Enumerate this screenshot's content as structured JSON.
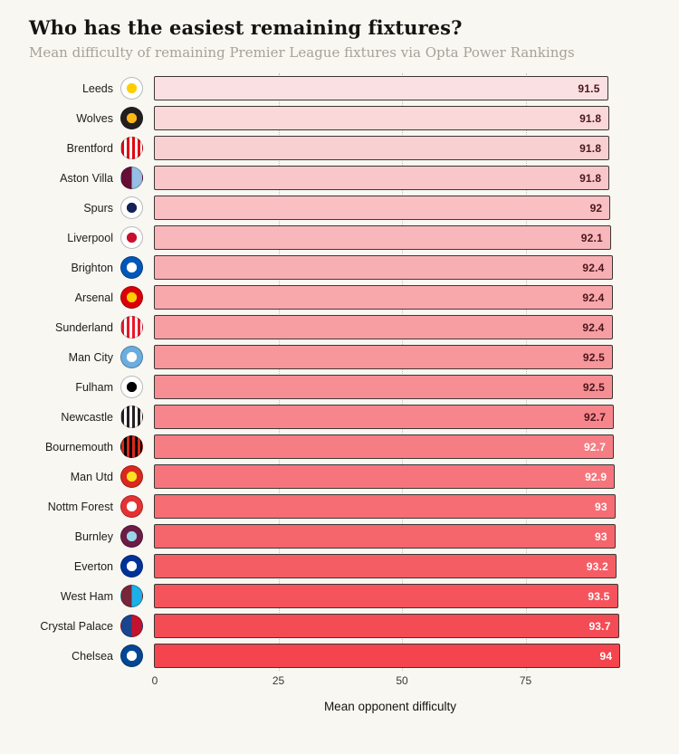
{
  "header": {
    "title": "Who has the easiest remaining fixtures?",
    "subtitle": "Mean difficulty of remaining Premier League fixtures via Opta Power Rankings"
  },
  "chart_data": {
    "type": "bar",
    "orientation": "horizontal",
    "title": "Who has the easiest remaining fixtures?",
    "subtitle": "Mean difficulty of remaining Premier League fixtures via Opta Power Rankings",
    "xlabel": "Mean opponent difficulty",
    "x_ticks": [
      0,
      25,
      50,
      75
    ],
    "xlim": [
      0,
      95
    ],
    "grid": "dotted-vertical",
    "bar_border_color": "#3c3734",
    "bar_color_light": "#fae0e2",
    "bar_color_dark": "#f4444d",
    "categories": [
      "Leeds",
      "Wolves",
      "Brentford",
      "Aston Villa",
      "Spurs",
      "Liverpool",
      "Brighton",
      "Arsenal",
      "Sunderland",
      "Man City",
      "Fulham",
      "Newcastle",
      "Bournemouth",
      "Man Utd",
      "Nottm Forest",
      "Burnley",
      "Everton",
      "West Ham",
      "Crystal Palace",
      "Chelsea"
    ],
    "values": [
      91.5,
      91.8,
      91.8,
      91.8,
      92,
      92.1,
      92.4,
      92.4,
      92.4,
      92.5,
      92.5,
      92.7,
      92.7,
      92.9,
      93,
      93,
      93.2,
      93.5,
      93.7,
      94
    ],
    "teams": [
      {
        "name": "Leeds",
        "value": 91.5,
        "value_label": "91.5",
        "bar_color": "#fae0e2",
        "value_text_color": "#4a171c",
        "logo": {
          "primary": "#ffffff",
          "secondary": "#ffcd00",
          "style": "solid"
        }
      },
      {
        "name": "Wolves",
        "value": 91.8,
        "value_label": "91.8",
        "bar_color": "#fad8da",
        "value_text_color": "#4a171c",
        "logo": {
          "primary": "#231f20",
          "secondary": "#fdb913",
          "style": "solid"
        }
      },
      {
        "name": "Brentford",
        "value": 91.8,
        "value_label": "91.8",
        "bar_color": "#f9d0d2",
        "value_text_color": "#4a171c",
        "logo": {
          "primary": "#e30613",
          "secondary": "#ffffff",
          "style": "stripes"
        }
      },
      {
        "name": "Aston Villa",
        "value": 91.8,
        "value_label": "91.8",
        "bar_color": "#f9c7ca",
        "value_text_color": "#4a171c",
        "logo": {
          "primary": "#670e36",
          "secondary": "#95bfe5",
          "style": "half"
        }
      },
      {
        "name": "Spurs",
        "value": 92,
        "value_label": "92",
        "bar_color": "#f9bfc3",
        "value_text_color": "#4a171c",
        "logo": {
          "primary": "#ffffff",
          "secondary": "#132257",
          "style": "solid"
        }
      },
      {
        "name": "Liverpool",
        "value": 92.1,
        "value_label": "92.1",
        "bar_color": "#f8b7bb",
        "value_text_color": "#4a171c",
        "logo": {
          "primary": "#ffffff",
          "secondary": "#c8102e",
          "style": "solid"
        }
      },
      {
        "name": "Brighton",
        "value": 92.4,
        "value_label": "92.4",
        "bar_color": "#f8afb3",
        "value_text_color": "#4a171c",
        "logo": {
          "primary": "#0057b8",
          "secondary": "#ffffff",
          "style": "solid"
        }
      },
      {
        "name": "Arsenal",
        "value": 92.4,
        "value_label": "92.4",
        "bar_color": "#f8a7ab",
        "value_text_color": "#4a171c",
        "logo": {
          "primary": "#db0007",
          "secondary": "#ffce00",
          "style": "solid"
        }
      },
      {
        "name": "Sunderland",
        "value": 92.4,
        "value_label": "92.4",
        "bar_color": "#f79ea3",
        "value_text_color": "#4a171c",
        "logo": {
          "primary": "#eb172b",
          "secondary": "#ffffff",
          "style": "stripes"
        }
      },
      {
        "name": "Man City",
        "value": 92.5,
        "value_label": "92.5",
        "bar_color": "#f7969b",
        "value_text_color": "#4a171c",
        "logo": {
          "primary": "#6caddf",
          "secondary": "#ffffff",
          "style": "solid"
        }
      },
      {
        "name": "Fulham",
        "value": 92.5,
        "value_label": "92.5",
        "bar_color": "#f78e94",
        "value_text_color": "#4a171c",
        "logo": {
          "primary": "#ffffff",
          "secondary": "#000000",
          "style": "solid"
        }
      },
      {
        "name": "Newcastle",
        "value": 92.7,
        "value_label": "92.7",
        "bar_color": "#f7868c",
        "value_text_color": "#4a171c",
        "logo": {
          "primary": "#241f20",
          "secondary": "#ffffff",
          "style": "stripes"
        }
      },
      {
        "name": "Bournemouth",
        "value": 92.7,
        "value_label": "92.7",
        "bar_color": "#f67d84",
        "value_text_color": "#ffffff",
        "logo": {
          "primary": "#da291c",
          "secondary": "#000000",
          "style": "stripes"
        }
      },
      {
        "name": "Man Utd",
        "value": 92.9,
        "value_label": "92.9",
        "bar_color": "#f6757c",
        "value_text_color": "#ffffff",
        "logo": {
          "primary": "#da291c",
          "secondary": "#fbe122",
          "style": "solid"
        }
      },
      {
        "name": "Nottm Forest",
        "value": 93,
        "value_label": "93",
        "bar_color": "#f66d74",
        "value_text_color": "#ffffff",
        "logo": {
          "primary": "#e53233",
          "secondary": "#ffffff",
          "style": "solid"
        }
      },
      {
        "name": "Burnley",
        "value": 93,
        "value_label": "93",
        "bar_color": "#f5656c",
        "value_text_color": "#ffffff",
        "logo": {
          "primary": "#6c1d45",
          "secondary": "#99d6ea",
          "style": "solid"
        }
      },
      {
        "name": "Everton",
        "value": 93.2,
        "value_label": "93.2",
        "bar_color": "#f55d65",
        "value_text_color": "#ffffff",
        "logo": {
          "primary": "#003399",
          "secondary": "#ffffff",
          "style": "solid"
        }
      },
      {
        "name": "West Ham",
        "value": 93.5,
        "value_label": "93.5",
        "bar_color": "#f5545d",
        "value_text_color": "#ffffff",
        "logo": {
          "primary": "#7a263a",
          "secondary": "#1bb1e7",
          "style": "half"
        }
      },
      {
        "name": "Crystal Palace",
        "value": 93.7,
        "value_label": "93.7",
        "bar_color": "#f44c55",
        "value_text_color": "#ffffff",
        "logo": {
          "primary": "#1b458f",
          "secondary": "#c4122e",
          "style": "half"
        }
      },
      {
        "name": "Chelsea",
        "value": 94,
        "value_label": "94",
        "bar_color": "#f4444d",
        "value_text_color": "#ffffff",
        "logo": {
          "primary": "#034694",
          "secondary": "#ffffff",
          "style": "solid"
        }
      }
    ]
  }
}
